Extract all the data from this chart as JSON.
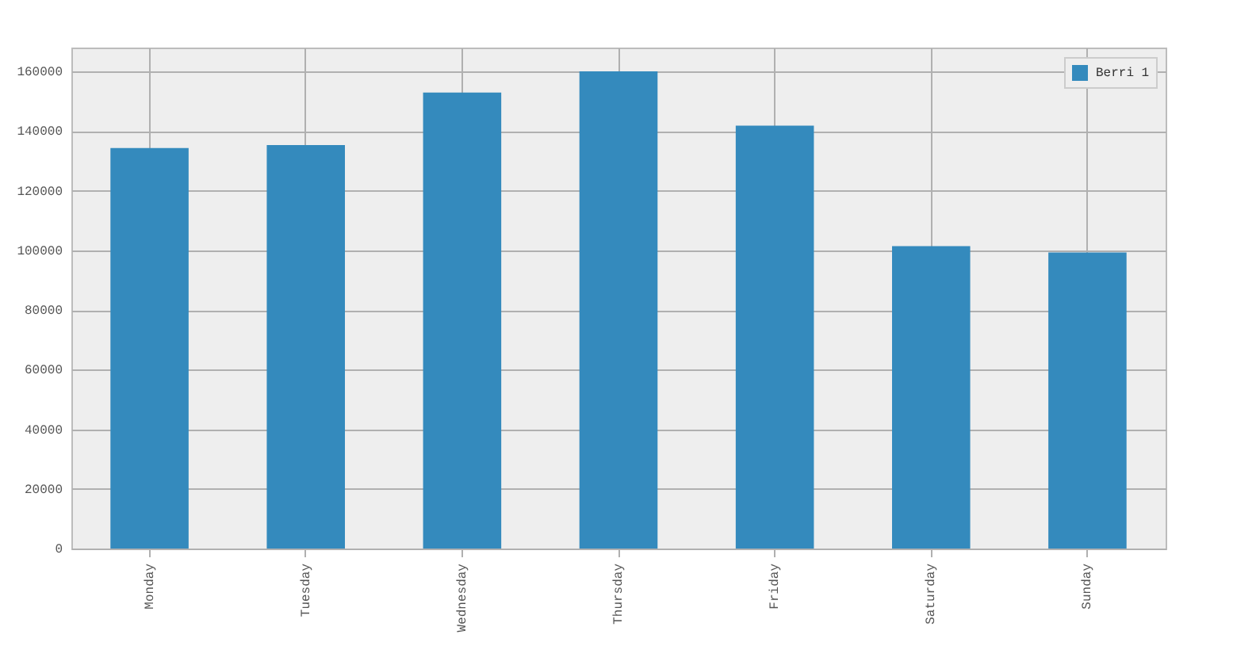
{
  "chart_data": {
    "type": "bar",
    "categories": [
      "Monday",
      "Tuesday",
      "Wednesday",
      "Thursday",
      "Friday",
      "Saturday",
      "Sunday"
    ],
    "series": [
      {
        "name": "Berri 1",
        "color": "#348abd",
        "values": [
          134300,
          135300,
          152900,
          160000,
          141800,
          101400,
          99300
        ]
      }
    ],
    "ylim": [
      0,
      168000
    ],
    "yticks": [
      0,
      20000,
      40000,
      60000,
      80000,
      100000,
      120000,
      140000,
      160000
    ],
    "grid": true,
    "legend": "top right"
  }
}
